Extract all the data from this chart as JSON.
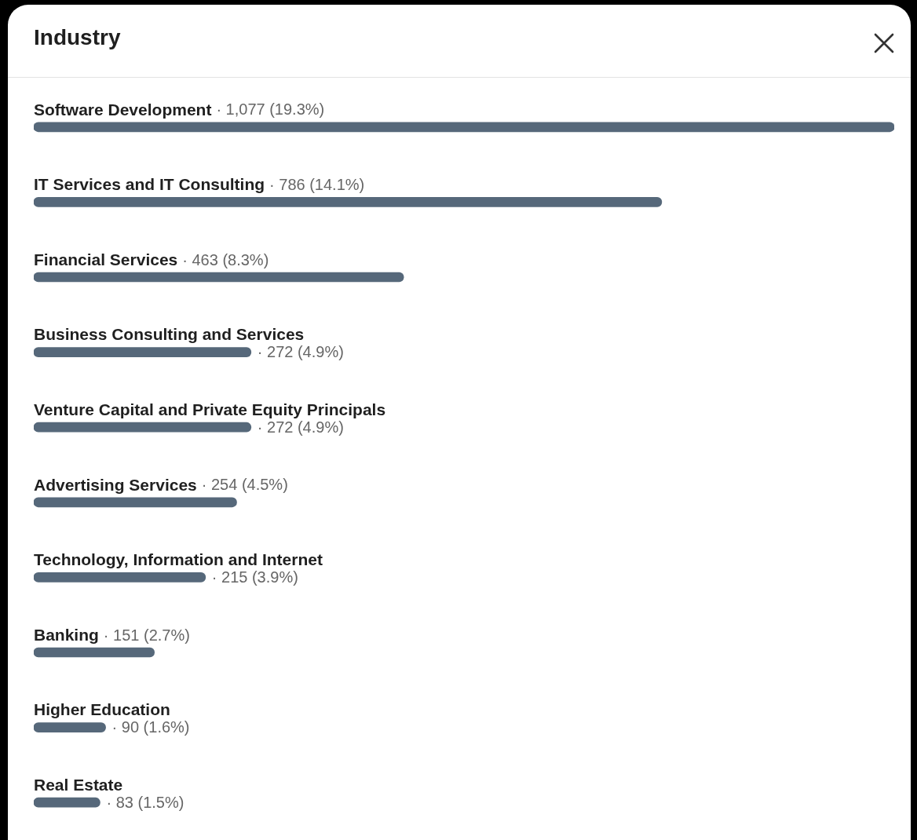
{
  "chart_data": {
    "type": "bar",
    "orientation": "horizontal",
    "title": "Industry",
    "categories": [
      "Software Development",
      "IT Services and IT Consulting",
      "Financial Services",
      "Business Consulting and Services",
      "Venture Capital and Private Equity Principals",
      "Advertising Services",
      "Technology, Information and Internet",
      "Banking",
      "Higher Education",
      "Real Estate"
    ],
    "values": [
      1077,
      786,
      463,
      272,
      272,
      254,
      215,
      151,
      90,
      83
    ],
    "value_labels": [
      "· 1,077 (19.3%)",
      "· 786 (14.1%)",
      "· 463 (8.3%)",
      "· 272 (4.9%)",
      "· 272 (4.9%)",
      "· 254 (4.5%)",
      "· 215 (3.9%)",
      "· 151 (2.7%)",
      "· 90 (1.6%)",
      "· 83 (1.5%)"
    ],
    "color": "#56687a"
  }
}
